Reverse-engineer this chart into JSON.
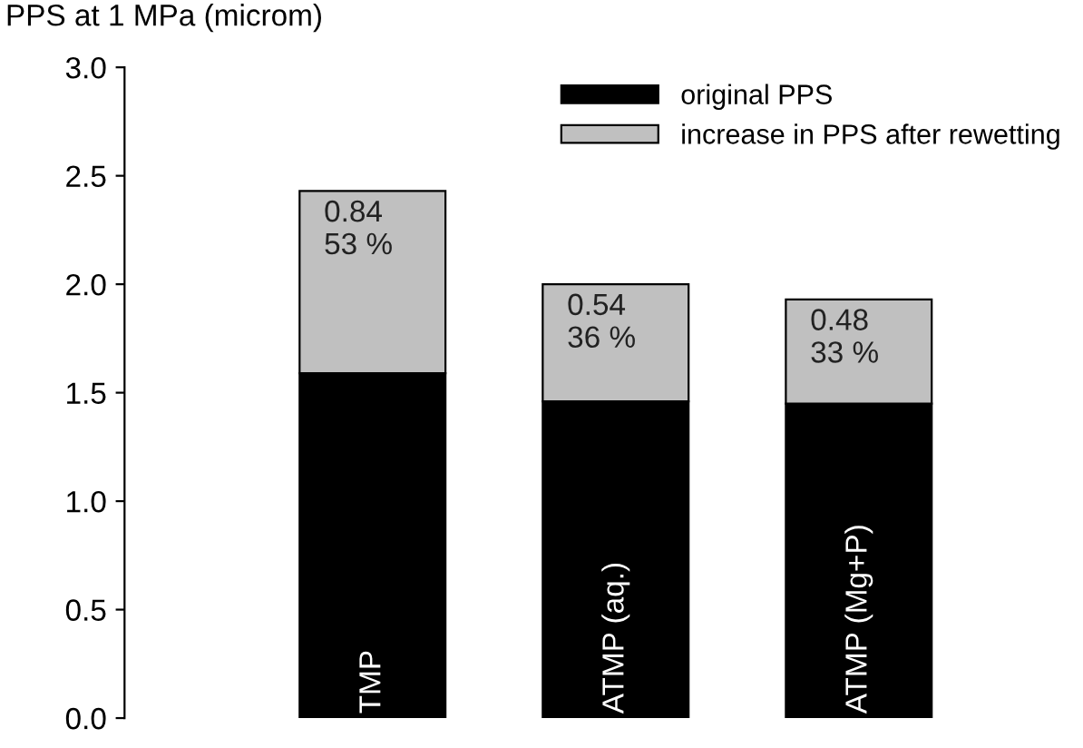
{
  "chart_data": {
    "type": "bar",
    "ylabel": "PPS at 1 MPa (microm)",
    "stacked": true,
    "categories": [
      "TMP",
      "ATMP (aq.)",
      "ATMP (Mg+P)"
    ],
    "series": [
      {
        "name": "original PPS",
        "color": "#000000",
        "values": [
          1.59,
          1.46,
          1.45
        ]
      },
      {
        "name": "increase in PPS after rewetting",
        "color": "#c0c0c0",
        "values": [
          0.84,
          0.54,
          0.48
        ],
        "value_labels": [
          "0.84\n53 %",
          "0.54\n36 %",
          "0.48\n33 %"
        ]
      }
    ],
    "ylim": [
      0,
      3
    ],
    "yticks": [
      {
        "value": 0,
        "label": "0.0"
      },
      {
        "value": 0.5,
        "label": "0.5"
      },
      {
        "value": 1,
        "label": "1.0"
      },
      {
        "value": 1.5,
        "label": "1.5"
      },
      {
        "value": 2,
        "label": "2.0"
      },
      {
        "value": 2.5,
        "label": "2.5"
      },
      {
        "value": 3,
        "label": "3.0"
      }
    ],
    "grid": false,
    "legend": "top right"
  }
}
